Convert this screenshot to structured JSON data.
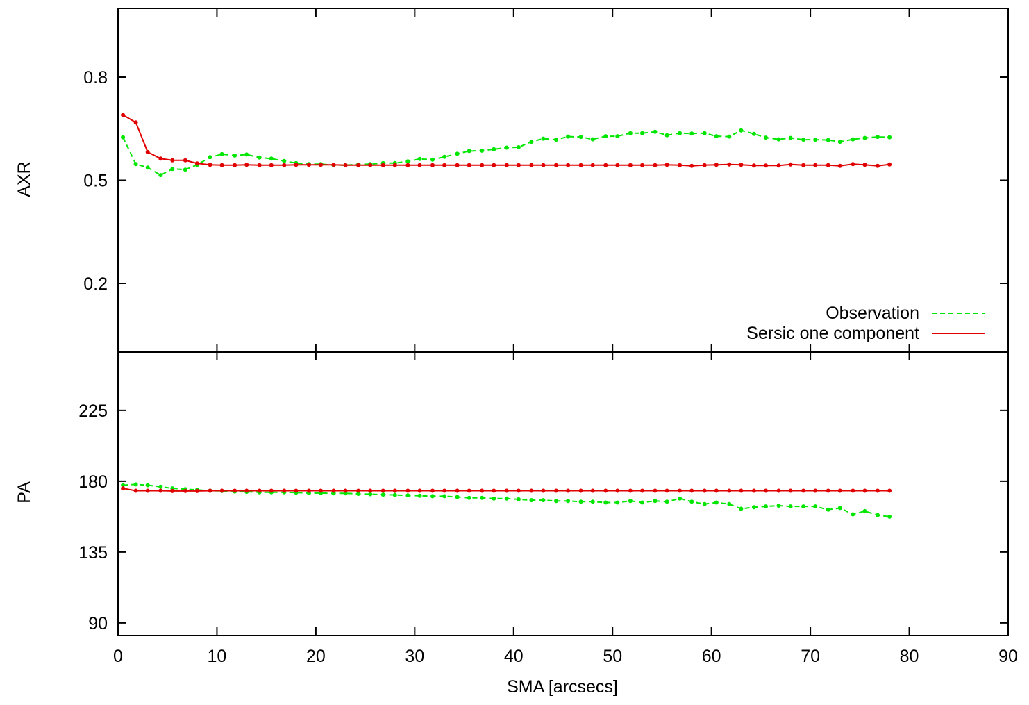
{
  "colors": {
    "observation": "#00e600",
    "model": "#e00000",
    "axes": "#000000"
  },
  "chart_data": [
    {
      "type": "line",
      "panel": "top",
      "xlabel": "",
      "ylabel": "AXR",
      "xlim": [
        0,
        90
      ],
      "ylim": [
        0.0,
        1.0
      ],
      "yticks": [
        0.2,
        0.5,
        0.8
      ],
      "ytick_labels": [
        "0.2",
        "0.5",
        "0.8"
      ],
      "xticks": [
        0,
        10,
        20,
        30,
        40,
        50,
        60,
        70,
        80,
        90
      ],
      "legend": {
        "placement": "bottom-right",
        "entries": [
          {
            "label": "Observation",
            "style": "dashed",
            "color": "#00e600"
          },
          {
            "label": "Sersic one component",
            "style": "solid",
            "color": "#e00000"
          }
        ]
      },
      "series": [
        {
          "name": "Observation",
          "style": "dashed",
          "color": "#00e600",
          "markers": true,
          "x": [
            0.5,
            1.8,
            3.0,
            4.3,
            5.5,
            6.8,
            8.0,
            9.3,
            10.5,
            11.8,
            13.0,
            14.3,
            15.5,
            16.8,
            18.0,
            19.3,
            20.5,
            21.8,
            23.0,
            24.3,
            25.5,
            26.8,
            28.0,
            29.3,
            30.5,
            31.8,
            33.0,
            34.3,
            35.5,
            36.8,
            38.0,
            39.3,
            40.5,
            41.8,
            43.0,
            44.3,
            45.5,
            46.8,
            48.0,
            49.3,
            50.5,
            51.8,
            53.0,
            54.3,
            55.5,
            56.8,
            58.0,
            59.3,
            60.5,
            61.8,
            63.0,
            64.3,
            65.5,
            66.8,
            68.0,
            69.3,
            70.5,
            71.8,
            73.0,
            74.3,
            75.5,
            76.8,
            78.0
          ],
          "y": [
            0.625,
            0.547,
            0.537,
            0.515,
            0.533,
            0.531,
            0.545,
            0.567,
            0.576,
            0.572,
            0.575,
            0.566,
            0.563,
            0.556,
            0.55,
            0.547,
            0.547,
            0.544,
            0.544,
            0.546,
            0.547,
            0.55,
            0.55,
            0.555,
            0.562,
            0.56,
            0.568,
            0.577,
            0.585,
            0.586,
            0.59,
            0.595,
            0.596,
            0.612,
            0.621,
            0.618,
            0.627,
            0.626,
            0.619,
            0.628,
            0.628,
            0.637,
            0.637,
            0.641,
            0.631,
            0.637,
            0.636,
            0.637,
            0.628,
            0.627,
            0.645,
            0.635,
            0.624,
            0.619,
            0.623,
            0.618,
            0.618,
            0.617,
            0.612,
            0.619,
            0.623,
            0.626,
            0.625
          ]
        },
        {
          "name": "Sersic one component",
          "style": "solid",
          "color": "#e00000",
          "markers": true,
          "x": [
            0.5,
            1.8,
            3.0,
            4.3,
            5.5,
            6.8,
            8.0,
            9.3,
            10.5,
            11.8,
            13.0,
            14.3,
            15.5,
            16.8,
            18.0,
            19.3,
            20.5,
            21.8,
            23.0,
            24.3,
            25.5,
            26.8,
            28.0,
            29.3,
            30.5,
            31.8,
            33.0,
            34.3,
            35.5,
            36.8,
            38.0,
            39.3,
            40.5,
            41.8,
            43.0,
            44.3,
            45.5,
            46.8,
            48.0,
            49.3,
            50.5,
            51.8,
            53.0,
            54.3,
            55.5,
            56.8,
            58.0,
            59.3,
            60.5,
            61.8,
            63.0,
            64.3,
            65.5,
            66.8,
            68.0,
            69.3,
            70.5,
            71.8,
            73.0,
            74.3,
            75.5,
            76.8,
            78.0
          ],
          "y": [
            0.69,
            0.668,
            0.582,
            0.563,
            0.558,
            0.558,
            0.549,
            0.545,
            0.544,
            0.544,
            0.545,
            0.544,
            0.544,
            0.544,
            0.545,
            0.545,
            0.545,
            0.545,
            0.544,
            0.544,
            0.544,
            0.544,
            0.544,
            0.544,
            0.544,
            0.544,
            0.544,
            0.544,
            0.544,
            0.544,
            0.544,
            0.544,
            0.544,
            0.544,
            0.544,
            0.544,
            0.544,
            0.544,
            0.544,
            0.544,
            0.544,
            0.544,
            0.544,
            0.544,
            0.545,
            0.544,
            0.542,
            0.544,
            0.545,
            0.546,
            0.545,
            0.543,
            0.543,
            0.543,
            0.546,
            0.544,
            0.544,
            0.544,
            0.542,
            0.547,
            0.545,
            0.542,
            0.546
          ]
        }
      ]
    },
    {
      "type": "line",
      "panel": "bottom",
      "xlabel": "SMA [arcsecs]",
      "ylabel": "PA",
      "xlim": [
        0,
        90
      ],
      "ylim": [
        82,
        262
      ],
      "yticks": [
        90,
        135,
        180,
        225
      ],
      "ytick_labels": [
        "90",
        "135",
        "180",
        "225"
      ],
      "xticks": [
        0,
        10,
        20,
        30,
        40,
        50,
        60,
        70,
        80,
        90
      ],
      "xtick_labels": [
        "0",
        "10",
        "20",
        "30",
        "40",
        "50",
        "60",
        "70",
        "80",
        "90"
      ],
      "series": [
        {
          "name": "Observation",
          "style": "dashed",
          "color": "#00e600",
          "markers": true,
          "x": [
            0.5,
            1.8,
            3.0,
            4.3,
            5.5,
            6.8,
            8.0,
            9.3,
            10.5,
            11.8,
            13.0,
            14.3,
            15.5,
            16.8,
            18.0,
            19.3,
            20.5,
            21.8,
            23.0,
            24.3,
            25.5,
            26.8,
            28.0,
            29.3,
            30.5,
            31.8,
            33.0,
            34.3,
            35.5,
            36.8,
            38.0,
            39.3,
            40.5,
            41.8,
            43.0,
            44.3,
            45.5,
            46.8,
            48.0,
            49.3,
            50.5,
            51.8,
            53.0,
            54.3,
            55.5,
            56.8,
            58.0,
            59.3,
            60.5,
            61.8,
            63.0,
            64.3,
            65.5,
            66.8,
            68.0,
            69.3,
            70.5,
            71.8,
            73.0,
            74.3,
            75.5,
            76.8,
            78.0
          ],
          "y": [
            177.5,
            178.0,
            177.5,
            176.5,
            175.5,
            175.0,
            174.5,
            174.0,
            173.8,
            173.5,
            173.3,
            173.0,
            173.0,
            173.0,
            172.8,
            172.5,
            172.5,
            172.3,
            172.3,
            172.0,
            171.8,
            171.5,
            171.3,
            171.0,
            170.8,
            170.5,
            170.5,
            170.0,
            169.5,
            169.5,
            169.0,
            169.0,
            168.5,
            168.0,
            168.0,
            167.5,
            167.5,
            167.0,
            167.0,
            166.5,
            166.5,
            167.5,
            166.5,
            167.5,
            167.0,
            169.0,
            167.0,
            165.5,
            166.5,
            165.5,
            162.5,
            163.5,
            164.0,
            164.5,
            164.0,
            164.0,
            164.0,
            162.0,
            163.0,
            159.0,
            161.0,
            158.5,
            157.5
          ]
        },
        {
          "name": "Sersic one component",
          "style": "solid",
          "color": "#e00000",
          "markers": true,
          "x": [
            0.5,
            1.8,
            3.0,
            4.3,
            5.5,
            6.8,
            8.0,
            9.3,
            10.5,
            11.8,
            13.0,
            14.3,
            15.5,
            16.8,
            18.0,
            19.3,
            20.5,
            21.8,
            23.0,
            24.3,
            25.5,
            26.8,
            28.0,
            29.3,
            30.5,
            31.8,
            33.0,
            34.3,
            35.5,
            36.8,
            38.0,
            39.3,
            40.5,
            41.8,
            43.0,
            44.3,
            45.5,
            46.8,
            48.0,
            49.3,
            50.5,
            51.8,
            53.0,
            54.3,
            55.5,
            56.8,
            58.0,
            59.3,
            60.5,
            61.8,
            63.0,
            64.3,
            65.5,
            66.8,
            68.0,
            69.3,
            70.5,
            71.8,
            73.0,
            74.3,
            75.5,
            76.8,
            78.0
          ],
          "y": [
            175.5,
            174.0,
            174.0,
            174.0,
            173.8,
            173.8,
            173.8,
            174.0,
            174.0,
            174.0,
            174.0,
            174.0,
            174.0,
            174.0,
            174.0,
            174.0,
            174.0,
            174.0,
            174.0,
            174.0,
            174.0,
            174.0,
            174.0,
            174.0,
            174.0,
            174.0,
            174.0,
            174.0,
            174.0,
            174.0,
            174.0,
            174.0,
            174.0,
            174.0,
            174.0,
            174.0,
            174.0,
            174.0,
            174.0,
            174.0,
            174.0,
            174.0,
            174.0,
            174.0,
            174.0,
            174.0,
            174.0,
            174.0,
            174.0,
            174.0,
            174.0,
            174.0,
            174.0,
            174.0,
            174.0,
            174.0,
            174.0,
            174.0,
            174.0,
            174.0,
            174.0,
            174.0,
            174.0
          ]
        }
      ]
    }
  ]
}
